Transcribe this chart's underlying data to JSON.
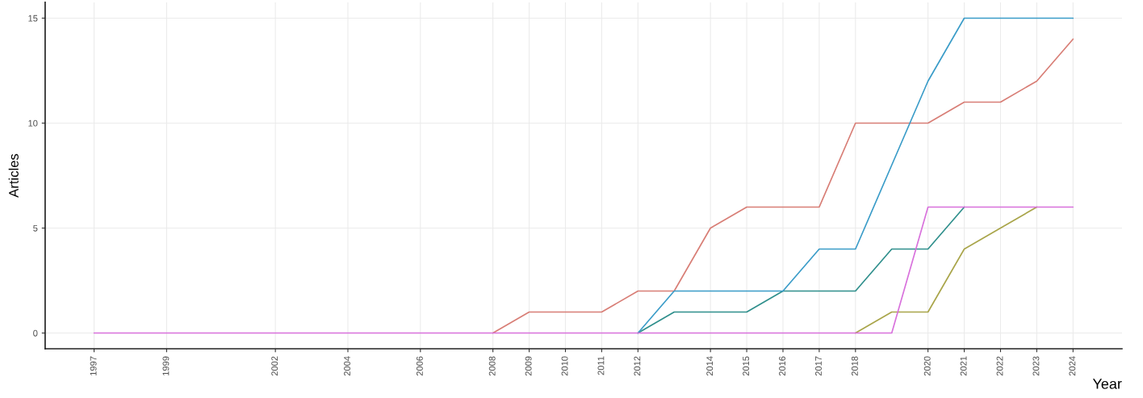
{
  "chart_data": {
    "type": "line",
    "xlabel": "Year",
    "ylabel": "Articles",
    "x": [
      1997,
      1998,
      1999,
      2000,
      2001,
      2002,
      2003,
      2004,
      2005,
      2006,
      2007,
      2008,
      2009,
      2010,
      2011,
      2012,
      2013,
      2014,
      2015,
      2016,
      2017,
      2018,
      2019,
      2020,
      2021,
      2022,
      2023,
      2024
    ],
    "series": [
      {
        "color": "#d87e76",
        "values": [
          null,
          null,
          null,
          null,
          null,
          null,
          null,
          null,
          null,
          null,
          null,
          0,
          1,
          1,
          1,
          2,
          2,
          5,
          6,
          6,
          6,
          10,
          10,
          10,
          11,
          11,
          12,
          14
        ]
      },
      {
        "color": "#a9a54a",
        "values": [
          null,
          null,
          null,
          null,
          null,
          null,
          null,
          null,
          null,
          null,
          null,
          null,
          null,
          null,
          null,
          null,
          null,
          null,
          null,
          null,
          null,
          0,
          1,
          1,
          4,
          5,
          6,
          null
        ]
      },
      {
        "color": "#2f8f8c",
        "values": [
          null,
          null,
          null,
          null,
          null,
          null,
          null,
          null,
          null,
          null,
          null,
          null,
          null,
          null,
          null,
          0,
          1,
          1,
          1,
          2,
          2,
          2,
          4,
          4,
          6,
          null,
          null,
          null
        ]
      },
      {
        "color": "#3a9cc8",
        "values": [
          null,
          null,
          null,
          null,
          null,
          null,
          null,
          null,
          null,
          null,
          null,
          null,
          null,
          null,
          null,
          0,
          2,
          2,
          2,
          2,
          4,
          4,
          8,
          12,
          15,
          15,
          15,
          15
        ]
      },
      {
        "color": "#d871dc",
        "values": [
          0,
          0,
          0,
          0,
          0,
          0,
          0,
          0,
          0,
          0,
          0,
          0,
          0,
          0,
          0,
          0,
          0,
          0,
          0,
          0,
          0,
          0,
          0,
          6,
          6,
          6,
          6,
          6
        ]
      }
    ],
    "xlim": [
      1995.65,
      2025.35
    ],
    "xticks": [
      1997,
      1999,
      2002,
      2004,
      2006,
      2008,
      2009,
      2010,
      2011,
      2012,
      2014,
      2015,
      2016,
      2017,
      2018,
      2020,
      2021,
      2022,
      2023,
      2024
    ],
    "ylim": [
      -0.75,
      15.75
    ],
    "yticks": [
      0,
      5,
      10,
      15
    ],
    "grid": true
  }
}
